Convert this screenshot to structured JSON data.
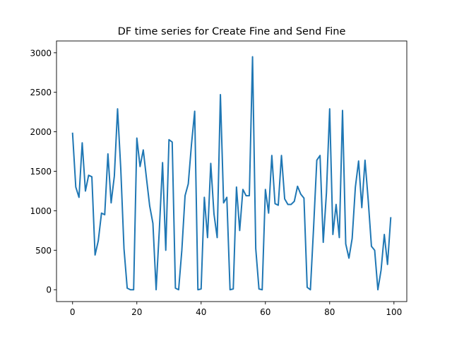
{
  "chart_data": {
    "type": "line",
    "title": "DF time series for Create Fine and Send Fine",
    "xlabel": "",
    "ylabel": "",
    "xlim": [
      -5,
      104
    ],
    "ylim": [
      -150,
      3150
    ],
    "xticks": [
      0,
      20,
      40,
      60,
      80,
      100
    ],
    "yticks": [
      0,
      500,
      1000,
      1500,
      2000,
      2500,
      3000
    ],
    "grid": false,
    "legend": "none",
    "line_color": "#1f77b4",
    "series": [
      {
        "x": [
          0,
          1,
          2,
          3,
          4,
          5,
          6,
          7,
          8,
          9,
          10,
          11,
          12,
          13,
          14,
          15,
          16,
          17,
          18,
          19,
          20,
          21,
          22,
          23,
          24,
          25,
          26,
          27,
          28,
          29,
          30,
          31,
          32,
          33,
          34,
          35,
          36,
          37,
          38,
          39,
          40,
          41,
          42,
          43,
          44,
          45,
          46,
          47,
          48,
          49,
          50,
          51,
          52,
          53,
          54,
          55,
          56,
          57,
          58,
          59,
          60,
          61,
          62,
          63,
          64,
          65,
          66,
          67,
          68,
          69,
          70,
          71,
          72,
          73,
          74,
          75,
          76,
          77,
          78,
          79,
          80,
          81,
          82,
          83,
          84,
          85,
          86,
          87,
          88,
          89,
          90,
          91,
          92,
          93,
          94,
          95,
          96,
          97,
          98,
          99
        ],
        "values": [
          1980,
          1300,
          1170,
          1860,
          1250,
          1450,
          1430,
          440,
          620,
          970,
          950,
          1720,
          1100,
          1440,
          2290,
          1530,
          520,
          20,
          0,
          0,
          1920,
          1560,
          1770,
          1410,
          1060,
          840,
          0,
          760,
          1610,
          500,
          1900,
          1870,
          20,
          0,
          500,
          1190,
          1340,
          1840,
          2260,
          0,
          10,
          1170,
          660,
          1600,
          960,
          660,
          2470,
          1100,
          1170,
          0,
          10,
          1300,
          750,
          1270,
          1190,
          1190,
          2950,
          520,
          10,
          0,
          1270,
          970,
          1700,
          1090,
          1070,
          1700,
          1150,
          1080,
          1080,
          1120,
          1310,
          1210,
          1160,
          30,
          0,
          790,
          1640,
          1700,
          600,
          1230,
          2290,
          700,
          1080,
          660,
          2270,
          580,
          400,
          650,
          1300,
          1630,
          1040,
          1640,
          1130,
          550,
          500,
          0,
          250,
          700,
          320,
          910
        ]
      }
    ]
  }
}
